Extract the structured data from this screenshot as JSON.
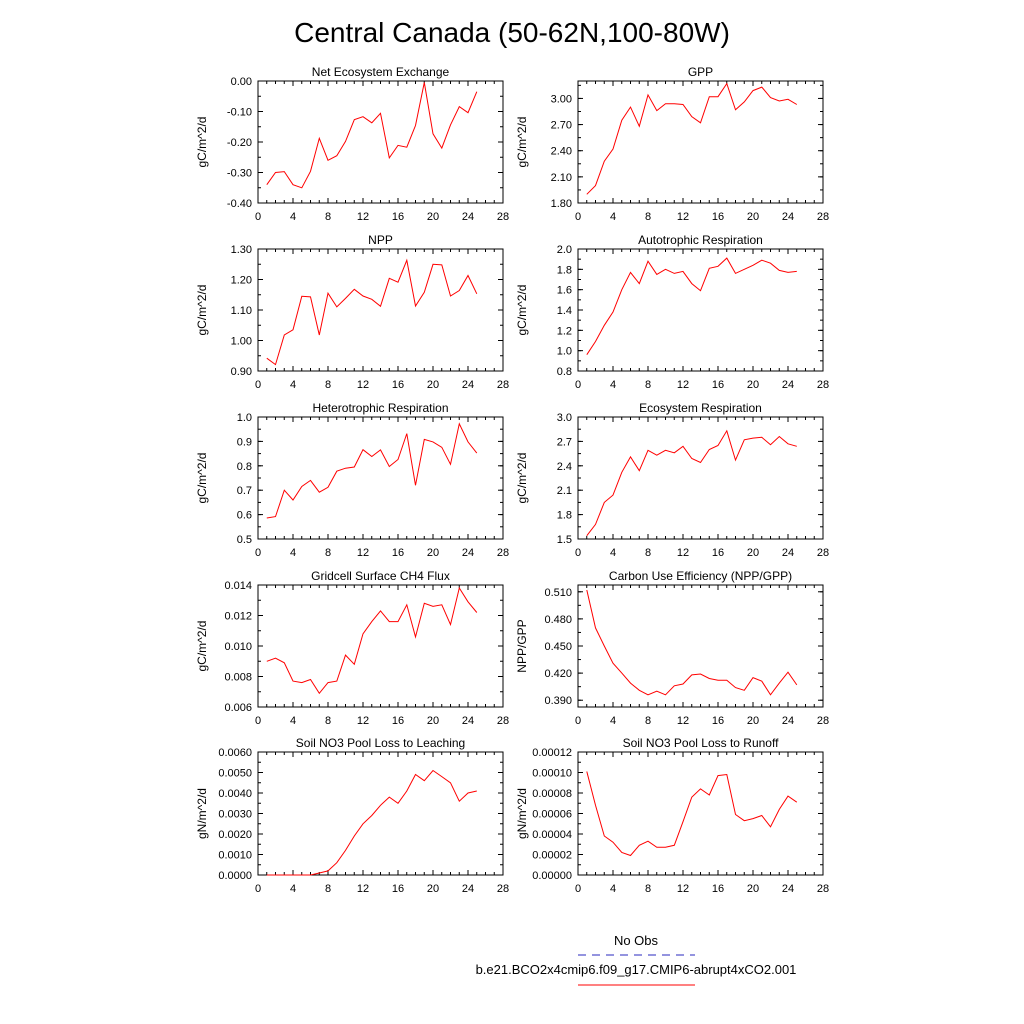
{
  "figure": {
    "title": "Central Canada (50-62N,100-80W)",
    "series_color": "#ff0000",
    "obs_color": "#5555cc"
  },
  "legend": {
    "obs_label": "No Obs",
    "model_label": "b.e21.BCO2x4cmip6.f09_g17.CMIP6-abrupt4xCO2.001"
  },
  "chart_data": [
    {
      "type": "line",
      "title": "Net Ecosystem Exchange",
      "ylabel": "gC/m^2/d",
      "xlim": [
        0,
        28
      ],
      "xticks": [
        "0",
        "4",
        "8",
        "12",
        "16",
        "20",
        "24",
        "28"
      ],
      "ylim": [
        -0.4,
        0.0
      ],
      "yticks": [
        "-0.40",
        "-0.30",
        "-0.20",
        "-0.10",
        "0.00"
      ],
      "x": [
        1,
        2,
        3,
        4,
        5,
        6,
        7,
        8,
        9,
        10,
        11,
        12,
        13,
        14,
        15,
        16,
        17,
        18,
        19,
        20,
        21,
        22,
        23,
        24,
        25
      ],
      "values": [
        -0.34,
        -0.3,
        -0.297,
        -0.34,
        -0.35,
        -0.296,
        -0.188,
        -0.26,
        -0.245,
        -0.198,
        -0.127,
        -0.117,
        -0.137,
        -0.106,
        -0.252,
        -0.211,
        -0.217,
        -0.146,
        -0.005,
        -0.173,
        -0.22,
        -0.144,
        -0.084,
        -0.104,
        -0.035
      ]
    },
    {
      "type": "line",
      "title": "GPP",
      "ylabel": "gC/m^2/d",
      "xlim": [
        0,
        28
      ],
      "xticks": [
        "0",
        "4",
        "8",
        "12",
        "16",
        "20",
        "24",
        "28"
      ],
      "ylim": [
        1.8,
        3.2
      ],
      "yticks": [
        "1.80",
        "2.10",
        "2.40",
        "2.70",
        "3.00"
      ],
      "x": [
        1,
        2,
        3,
        4,
        5,
        6,
        7,
        8,
        9,
        10,
        11,
        12,
        13,
        14,
        15,
        16,
        17,
        18,
        19,
        20,
        21,
        22,
        23,
        24,
        25
      ],
      "values": [
        1.9,
        2.0,
        2.28,
        2.42,
        2.75,
        2.9,
        2.68,
        3.04,
        2.86,
        2.94,
        2.94,
        2.93,
        2.79,
        2.72,
        3.02,
        3.02,
        3.17,
        2.87,
        2.96,
        3.09,
        3.13,
        3.01,
        2.97,
        2.99,
        2.93
      ]
    },
    {
      "type": "line",
      "title": "NPP",
      "ylabel": "gC/m^2/d",
      "xlim": [
        0,
        28
      ],
      "xticks": [
        "0",
        "4",
        "8",
        "12",
        "16",
        "20",
        "24",
        "28"
      ],
      "ylim": [
        0.9,
        1.3
      ],
      "yticks": [
        "0.90",
        "1.00",
        "1.10",
        "1.20",
        "1.30"
      ],
      "x": [
        1,
        2,
        3,
        4,
        5,
        6,
        7,
        8,
        9,
        10,
        11,
        12,
        13,
        14,
        15,
        16,
        17,
        18,
        19,
        20,
        21,
        22,
        23,
        24,
        25
      ],
      "values": [
        0.942,
        0.921,
        1.018,
        1.035,
        1.145,
        1.143,
        1.018,
        1.155,
        1.11,
        1.138,
        1.168,
        1.146,
        1.135,
        1.112,
        1.204,
        1.191,
        1.263,
        1.113,
        1.158,
        1.25,
        1.248,
        1.146,
        1.164,
        1.213,
        1.153
      ]
    },
    {
      "type": "line",
      "title": "Autotrophic Respiration",
      "ylabel": "gC/m^2/d",
      "xlim": [
        0,
        28
      ],
      "xticks": [
        "0",
        "4",
        "8",
        "12",
        "16",
        "20",
        "24",
        "28"
      ],
      "ylim": [
        0.8,
        2.0
      ],
      "yticks": [
        "0.8",
        "1.0",
        "1.2",
        "1.4",
        "1.6",
        "1.8",
        "2.0"
      ],
      "x": [
        1,
        2,
        3,
        4,
        5,
        6,
        7,
        8,
        9,
        10,
        11,
        12,
        13,
        14,
        15,
        16,
        17,
        18,
        19,
        20,
        21,
        22,
        23,
        24,
        25
      ],
      "values": [
        0.96,
        1.09,
        1.25,
        1.38,
        1.6,
        1.77,
        1.66,
        1.88,
        1.75,
        1.8,
        1.76,
        1.78,
        1.66,
        1.59,
        1.81,
        1.83,
        1.91,
        1.76,
        1.8,
        1.84,
        1.89,
        1.86,
        1.79,
        1.77,
        1.78
      ]
    },
    {
      "type": "line",
      "title": "Heterotrophic Respiration",
      "ylabel": "gC/m^2/d",
      "xlim": [
        0,
        28
      ],
      "xticks": [
        "0",
        "4",
        "8",
        "12",
        "16",
        "20",
        "24",
        "28"
      ],
      "ylim": [
        0.5,
        1.0
      ],
      "yticks": [
        "0.5",
        "0.6",
        "0.7",
        "0.8",
        "0.9",
        "1.0"
      ],
      "x": [
        1,
        2,
        3,
        4,
        5,
        6,
        7,
        8,
        9,
        10,
        11,
        12,
        13,
        14,
        15,
        16,
        17,
        18,
        19,
        20,
        21,
        22,
        23,
        24,
        25
      ],
      "values": [
        0.586,
        0.592,
        0.7,
        0.66,
        0.715,
        0.74,
        0.692,
        0.712,
        0.778,
        0.79,
        0.795,
        0.866,
        0.838,
        0.865,
        0.797,
        0.826,
        0.932,
        0.72,
        0.908,
        0.898,
        0.876,
        0.806,
        0.972,
        0.898,
        0.852
      ]
    },
    {
      "type": "line",
      "title": "Ecosystem Respiration",
      "ylabel": "gC/m^2/d",
      "xlim": [
        0,
        28
      ],
      "xticks": [
        "0",
        "4",
        "8",
        "12",
        "16",
        "20",
        "24",
        "28"
      ],
      "ylim": [
        1.5,
        3.0
      ],
      "yticks": [
        "1.5",
        "1.8",
        "2.1",
        "2.4",
        "2.7",
        "3.0"
      ],
      "x": [
        1,
        2,
        3,
        4,
        5,
        6,
        7,
        8,
        9,
        10,
        11,
        12,
        13,
        14,
        15,
        16,
        17,
        18,
        19,
        20,
        21,
        22,
        23,
        24,
        25
      ],
      "values": [
        1.54,
        1.68,
        1.95,
        2.04,
        2.32,
        2.51,
        2.34,
        2.59,
        2.53,
        2.59,
        2.56,
        2.64,
        2.49,
        2.44,
        2.6,
        2.65,
        2.83,
        2.47,
        2.72,
        2.74,
        2.75,
        2.66,
        2.76,
        2.67,
        2.64
      ]
    },
    {
      "type": "line",
      "title": "Gridcell Surface CH4 Flux",
      "ylabel": "gC/m^2/d",
      "xlim": [
        0,
        28
      ],
      "xticks": [
        "0",
        "4",
        "8",
        "12",
        "16",
        "20",
        "24",
        "28"
      ],
      "ylim": [
        0.006,
        0.014
      ],
      "yticks": [
        "0.006",
        "0.008",
        "0.010",
        "0.012",
        "0.014"
      ],
      "x": [
        1,
        2,
        3,
        4,
        5,
        6,
        7,
        8,
        9,
        10,
        11,
        12,
        13,
        14,
        15,
        16,
        17,
        18,
        19,
        20,
        21,
        22,
        23,
        24,
        25
      ],
      "values": [
        0.009,
        0.0092,
        0.0089,
        0.0077,
        0.0076,
        0.0078,
        0.0069,
        0.0076,
        0.0077,
        0.0094,
        0.0088,
        0.0108,
        0.0116,
        0.0123,
        0.0116,
        0.0116,
        0.0127,
        0.0106,
        0.0128,
        0.0126,
        0.0127,
        0.0114,
        0.0138,
        0.0129,
        0.0122
      ]
    },
    {
      "type": "line",
      "title": "Carbon Use Efficiency (NPP/GPP)",
      "ylabel": "NPP/GPP",
      "xlim": [
        0,
        28
      ],
      "xticks": [
        "0",
        "4",
        "8",
        "12",
        "16",
        "20",
        "24",
        "28"
      ],
      "ylim": [
        0.3825,
        0.5175
      ],
      "yticks": [
        "0.390",
        "0.420",
        "0.450",
        "0.480",
        "0.510"
      ],
      "x": [
        1,
        2,
        3,
        4,
        5,
        6,
        7,
        8,
        9,
        10,
        11,
        12,
        13,
        14,
        15,
        16,
        17,
        18,
        19,
        20,
        21,
        22,
        23,
        24,
        25
      ],
      "values": [
        0.512,
        0.47,
        0.45,
        0.431,
        0.42,
        0.409,
        0.401,
        0.396,
        0.4,
        0.396,
        0.406,
        0.408,
        0.418,
        0.419,
        0.414,
        0.412,
        0.412,
        0.404,
        0.401,
        0.415,
        0.411,
        0.396,
        0.409,
        0.421,
        0.407
      ]
    },
    {
      "type": "line",
      "title": "Soil NO3 Pool Loss to Leaching",
      "ylabel": "gN/m^2/d",
      "xlim": [
        0,
        28
      ],
      "xticks": [
        "0",
        "4",
        "8",
        "12",
        "16",
        "20",
        "24",
        "28"
      ],
      "ylim": [
        0.0,
        0.006
      ],
      "yticks": [
        "0.0000",
        "0.0010",
        "0.0020",
        "0.0030",
        "0.0040",
        "0.0050",
        "0.0060"
      ],
      "x": [
        1,
        2,
        3,
        4,
        5,
        6,
        7,
        8,
        9,
        10,
        11,
        12,
        13,
        14,
        15,
        16,
        17,
        18,
        19,
        20,
        21,
        22,
        23,
        24,
        25
      ],
      "values": [
        0.0,
        0.0,
        0.0,
        0.0,
        0.0,
        0.0,
        0.0001,
        0.0002,
        0.0006,
        0.0012,
        0.0019,
        0.0025,
        0.0029,
        0.0034,
        0.0038,
        0.0035,
        0.0041,
        0.0049,
        0.0046,
        0.0051,
        0.0048,
        0.0045,
        0.0036,
        0.004,
        0.0041
      ]
    },
    {
      "type": "line",
      "title": "Soil NO3 Pool Loss to Runoff",
      "ylabel": "gN/m^2/d",
      "xlim": [
        0,
        28
      ],
      "xticks": [
        "0",
        "4",
        "8",
        "12",
        "16",
        "20",
        "24",
        "28"
      ],
      "ylim": [
        0.0,
        0.00012
      ],
      "yticks": [
        "0.00000",
        "0.00002",
        "0.00004",
        "0.00006",
        "0.00008",
        "0.00010",
        "0.00012"
      ],
      "x": [
        1,
        2,
        3,
        4,
        5,
        6,
        7,
        8,
        9,
        10,
        11,
        12,
        13,
        14,
        15,
        16,
        17,
        18,
        19,
        20,
        21,
        22,
        23,
        24,
        25
      ],
      "values": [
        0.000101,
        6.8e-05,
        3.8e-05,
        3.2e-05,
        2.2e-05,
        1.9e-05,
        2.9e-05,
        3.3e-05,
        2.7e-05,
        2.7e-05,
        2.9e-05,
        5.2e-05,
        7.6e-05,
        8.4e-05,
        7.8e-05,
        9.7e-05,
        9.8e-05,
        5.9e-05,
        5.3e-05,
        5.5e-05,
        5.8e-05,
        4.7e-05,
        6.4e-05,
        7.7e-05,
        7.1e-05
      ]
    }
  ]
}
